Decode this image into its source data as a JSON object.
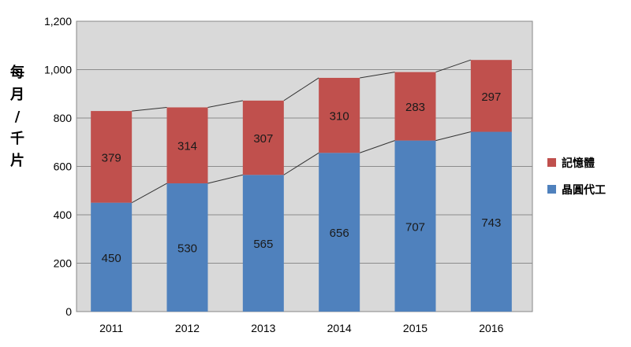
{
  "chart_data": {
    "type": "bar",
    "stacked": true,
    "categories": [
      "2011",
      "2012",
      "2013",
      "2014",
      "2015",
      "2016"
    ],
    "series": [
      {
        "name": "晶圓代工",
        "values": [
          450,
          530,
          565,
          656,
          707,
          743
        ],
        "color": "#4f81bd"
      },
      {
        "name": "記憶體",
        "values": [
          379,
          314,
          307,
          310,
          283,
          297
        ],
        "color": "#c0504d"
      }
    ],
    "ylabel": "每月/千片",
    "ylim": [
      0,
      1200
    ],
    "yticks": [
      0,
      200,
      400,
      600,
      800,
      1000,
      1200
    ],
    "ytick_labels": [
      "0",
      "200",
      "400",
      "600",
      "800",
      "1,000",
      "1,200"
    ],
    "grid": true,
    "legend_position": "right",
    "series_lines": true,
    "plot_background": "#d9d9d9"
  }
}
